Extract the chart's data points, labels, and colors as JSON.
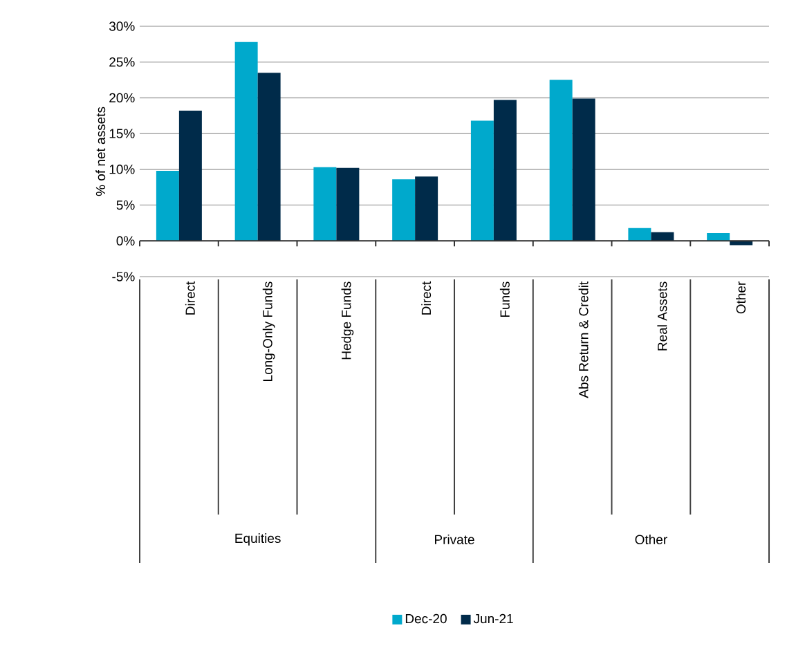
{
  "chart_data": {
    "type": "bar",
    "ylabel": "% of net assets",
    "categories": [
      "Direct",
      "Long-Only Funds",
      "Hedge Funds",
      "Direct",
      "Funds",
      "Abs Return & Credit",
      "Real Assets",
      "Other"
    ],
    "series": [
      {
        "name": "Dec-20",
        "color": "#00a9cc",
        "values": [
          9.8,
          27.8,
          10.3,
          8.6,
          16.8,
          22.5,
          1.8,
          1.1
        ]
      },
      {
        "name": "Jun-21",
        "color": "#002b4a",
        "values": [
          18.2,
          23.5,
          10.2,
          9.0,
          19.7,
          19.9,
          1.2,
          -0.6
        ]
      }
    ],
    "ylim": [
      -5,
      30
    ],
    "yticks": [
      {
        "value": -5,
        "label": "-5%"
      },
      {
        "value": 0,
        "label": "0%"
      },
      {
        "value": 5,
        "label": "5%"
      },
      {
        "value": 10,
        "label": "10%"
      },
      {
        "value": 15,
        "label": "15%"
      },
      {
        "value": 20,
        "label": "20%"
      },
      {
        "value": 25,
        "label": "25%"
      },
      {
        "value": 30,
        "label": "30%"
      }
    ],
    "annotations": [
      "Equities",
      "Private",
      "Other"
    ],
    "grid": "y",
    "legend": "bottom"
  }
}
